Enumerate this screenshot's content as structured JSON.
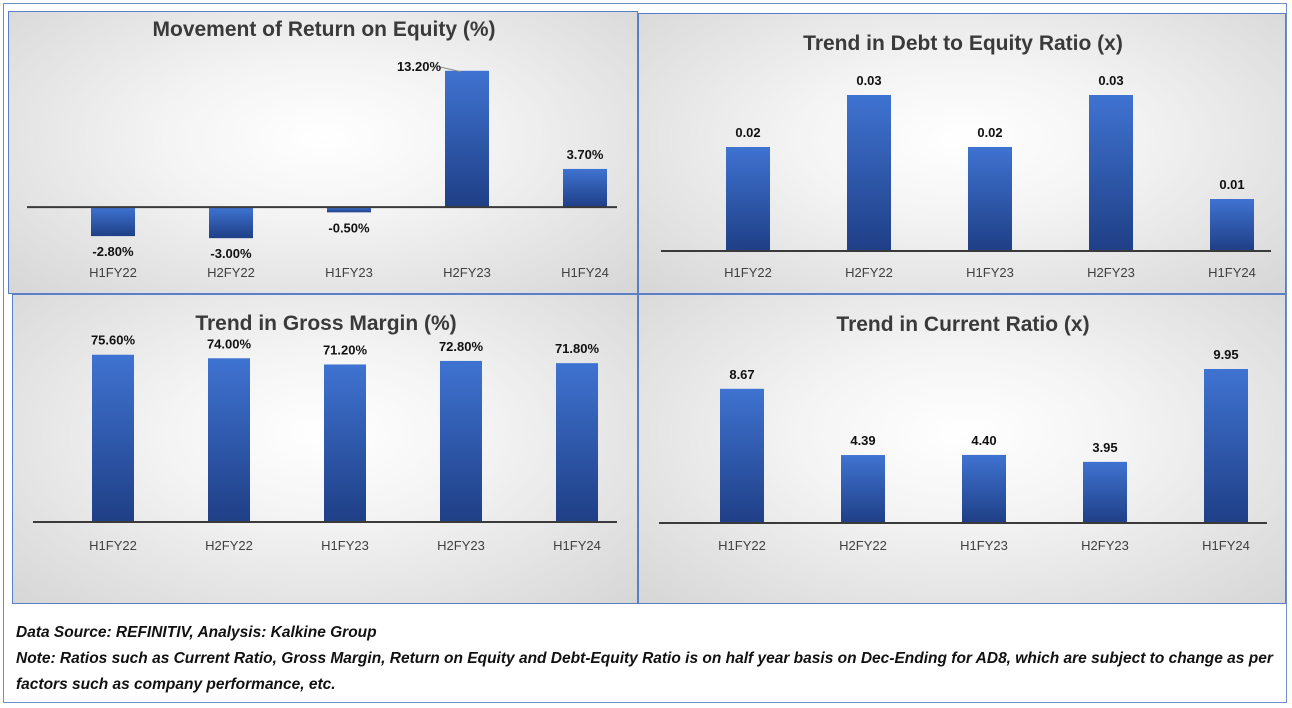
{
  "chart_data": [
    {
      "type": "bar",
      "title": "Movement of Return on Equity (%)",
      "categories": [
        "H1FY22",
        "H2FY22",
        "H1FY23",
        "H2FY23",
        "H1FY24"
      ],
      "values": [
        -2.8,
        -3.0,
        -0.5,
        13.2,
        3.7
      ],
      "data_labels": [
        "-2.80%",
        "-3.00%",
        "-0.50%",
        "13.20%",
        "3.70%"
      ],
      "ylim": [
        -5.5,
        15.5
      ],
      "grid": false,
      "legend": "none",
      "bar_color": "#3a6cc8"
    },
    {
      "type": "bar",
      "title": "Trend in Debt to Equity Ratio (x)",
      "categories": [
        "H1FY22",
        "H2FY22",
        "H1FY23",
        "H2FY23",
        "H1FY24"
      ],
      "values": [
        0.02,
        0.03,
        0.02,
        0.03,
        0.01
      ],
      "data_labels": [
        "0.02",
        "0.03",
        "0.02",
        "0.03",
        "0.01"
      ],
      "ylim": [
        0,
        0.035
      ],
      "grid": false,
      "legend": "none",
      "bar_color": "#3a6cc8"
    },
    {
      "type": "bar",
      "title": "Trend in Gross Margin (%)",
      "categories": [
        "H1FY22",
        "H2FY22",
        "H1FY23",
        "H2FY23",
        "H1FY24"
      ],
      "values": [
        75.6,
        74.0,
        71.2,
        72.8,
        71.8
      ],
      "data_labels": [
        "75.60%",
        "74.00%",
        "71.20%",
        "72.80%",
        "71.80%"
      ],
      "ylim": [
        0,
        80
      ],
      "grid": false,
      "legend": "none",
      "bar_color": "#3a6cc8"
    },
    {
      "type": "bar",
      "title": "Trend in Current Ratio (x)",
      "categories": [
        "H1FY22",
        "H2FY22",
        "H1FY23",
        "H2FY23",
        "H1FY24"
      ],
      "values": [
        8.67,
        4.39,
        4.4,
        3.95,
        9.95
      ],
      "data_labels": [
        "8.67",
        "4.39",
        "4.40",
        "3.95",
        "9.95"
      ],
      "ylim": [
        0,
        11.5
      ],
      "grid": false,
      "legend": "none",
      "bar_color": "#3a6cc8"
    }
  ],
  "footer": {
    "source": "Data Source: REFINITIV, Analysis: Kalkine Group",
    "note": "Note: Ratios such as Current Ratio, Gross Margin, Return on Equity and Debt-Equity Ratio is on half year basis on Dec-Ending for AD8, which are subject to change as per factors such as company performance, etc."
  }
}
